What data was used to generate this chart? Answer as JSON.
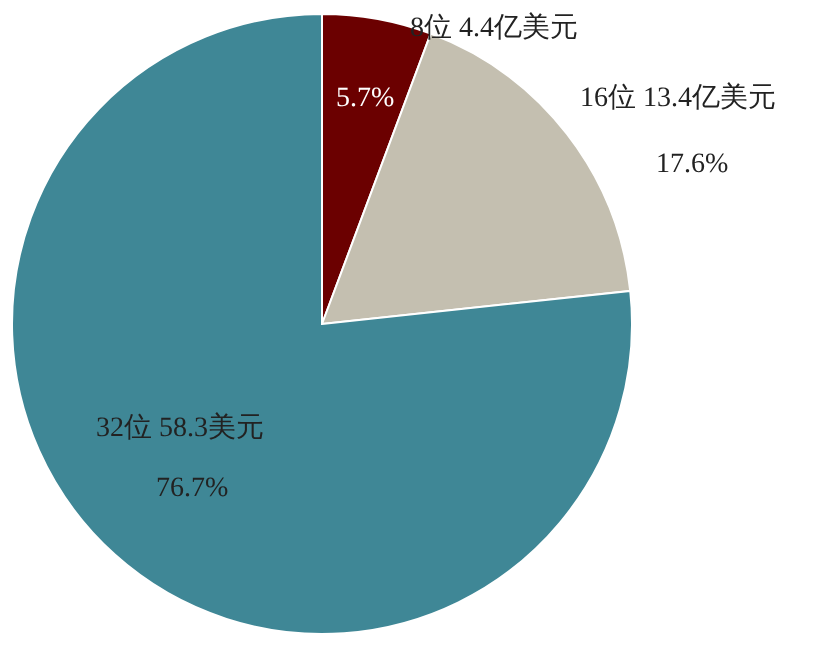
{
  "chart_data": {
    "type": "pie",
    "categories": [
      "8位 4.4亿美元",
      "16位 13.4亿美元",
      "32位 58.3美元"
    ],
    "values": [
      5.7,
      17.6,
      76.7
    ],
    "value_labels": [
      "5.7%",
      "17.6%",
      "76.7%"
    ],
    "colors": [
      "#6b0000",
      "#c4bfb0",
      "#3f8796"
    ]
  }
}
